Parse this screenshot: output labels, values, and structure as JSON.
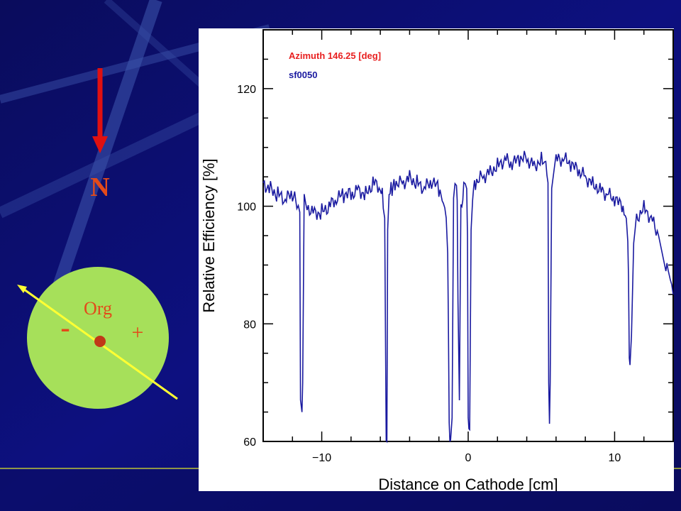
{
  "slide": {
    "background_color": "#0b0d6e",
    "north_label": "N",
    "origin_label": "Org",
    "minus_label": "-",
    "plus_label": "+",
    "arrow_color": "#e01010",
    "disc_color": "#a6e05a",
    "axis_line_color": "#ffff33",
    "label_color": "#e34a1a"
  },
  "chart_data": {
    "type": "line",
    "xlabel": "Distance on Cathode [cm]",
    "ylabel": "Relative Efficiency [%]",
    "xlim": [
      -14,
      14
    ],
    "ylim": [
      60,
      130
    ],
    "xticks": [
      -10,
      0,
      10
    ],
    "yticks": [
      60,
      80,
      100,
      120
    ],
    "legend": [
      {
        "text": "Azimuth 146.25 [deg]",
        "color": "#e82020"
      },
      {
        "text": "sf0050",
        "color": "#1a1aa0"
      }
    ],
    "line_color": "#1a1aa0",
    "series": [
      {
        "x": [
          -14,
          -13.5,
          -13,
          -12.5,
          -12,
          -11.7,
          -11.5,
          -11.45,
          -11.35,
          -11.3,
          -11.2,
          -11.1,
          -11.0,
          -10.5,
          -10,
          -9.5,
          -9,
          -8.5,
          -8,
          -7.5,
          -7,
          -6.5,
          -6,
          -5.8,
          -5.7,
          -5.6,
          -5.55,
          -5.5,
          -5.4,
          -5.2,
          -5,
          -4.5,
          -4,
          -3.5,
          -3,
          -2.5,
          -2,
          -1.7,
          -1.5,
          -1.4,
          -1.35,
          -1.3,
          -1.25,
          -1.2,
          -1.1,
          -1.0,
          -0.9,
          -0.8,
          -0.75,
          -0.7,
          -0.6,
          -0.5,
          -0.3,
          -0.2,
          -0.1,
          -0.05,
          0,
          0.05,
          0.1,
          0.2,
          0.3,
          0.5,
          1,
          1.5,
          2,
          2.5,
          3,
          3.5,
          4,
          4.5,
          5,
          5.3,
          5.45,
          5.5,
          5.55,
          5.6,
          5.7,
          6,
          6.5,
          7,
          7.5,
          8,
          8.5,
          9,
          9.5,
          10,
          10.5,
          10.8,
          10.9,
          10.95,
          11.0,
          11.05,
          11.15,
          11.3,
          11.5,
          12,
          12.5,
          13,
          13.5,
          13.8,
          14
        ],
        "y": [
          104,
          103,
          102,
          101,
          102,
          101,
          99,
          66,
          65,
          70,
          103,
          102,
          100,
          99,
          99,
          100,
          101,
          102,
          102,
          103,
          102,
          104,
          103,
          101,
          98,
          60,
          60,
          96,
          102,
          103,
          104,
          104,
          105,
          104,
          103,
          104,
          103,
          101,
          98,
          92,
          80,
          64,
          60,
          61,
          64,
          100,
          103,
          104,
          101,
          84,
          67,
          99,
          103,
          104,
          103,
          95,
          64,
          61,
          62,
          96,
          102,
          104,
          105,
          106,
          107,
          108,
          107,
          108,
          108,
          107,
          108,
          107,
          104,
          70,
          63,
          70,
          103,
          108,
          108,
          107,
          106,
          105,
          104,
          103,
          102,
          101,
          100,
          98,
          94,
          88,
          74,
          73,
          78,
          94,
          98,
          100,
          98,
          95,
          90,
          88,
          85
        ]
      }
    ]
  }
}
